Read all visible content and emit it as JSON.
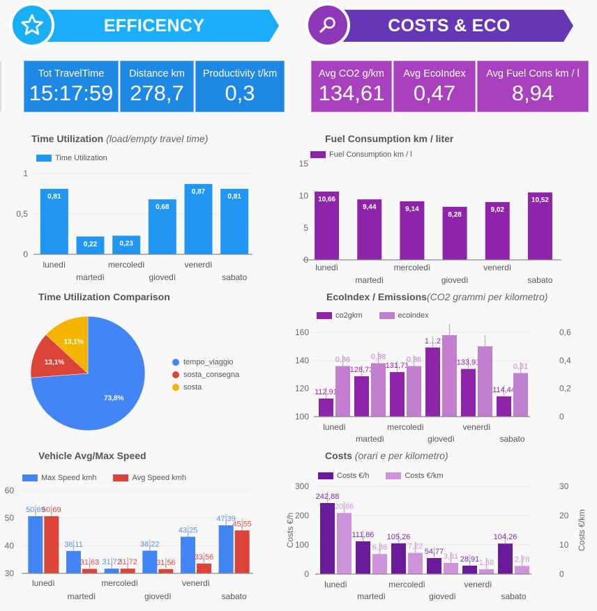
{
  "sections": {
    "efficiency": {
      "title": "EFFICENCY",
      "icon": "star-icon",
      "color": "#1aaefb"
    },
    "costs_eco": {
      "title": "COSTS & ECO",
      "icon": "magnifier-icon",
      "color": "#6637b5"
    }
  },
  "kpis_efficiency": [
    {
      "label": "Tot TravelTime",
      "value": "15:17:59"
    },
    {
      "label": "Distance km",
      "value": "278,7"
    },
    {
      "label": "Productivity t/km",
      "value": "0,3"
    }
  ],
  "kpis_eco": [
    {
      "label": "Avg CO2 g/km",
      "value": "134,61"
    },
    {
      "label": "Avg EcoIndex",
      "value": "0,47"
    },
    {
      "label": "Avg Fuel Cons km / l",
      "value": "8,94"
    }
  ],
  "titles": {
    "time_util": "Time Utilization ",
    "time_util_sub": "(load/empty travel time)",
    "fuel": "Fuel Consumption km / liter",
    "pie": "Time Utilization Comparison",
    "eco": "EcoIndex / Emissions",
    "eco_sub": "(CO2 grammi per kilometro)",
    "speed": "Vehicle Avg/Max Speed",
    "costs": "Costs ",
    "costs_sub": "(orari e per kilometro)"
  },
  "chart_data": [
    {
      "id": "time_util",
      "type": "bar",
      "title": "Time Utilization (load/empty travel time)",
      "categories": [
        "lunedì",
        "martedì",
        "mercoledì",
        "giovedì",
        "venerdì",
        "sabato"
      ],
      "series": [
        {
          "name": "Time Utilization",
          "values": [
            0.81,
            0.22,
            0.23,
            0.68,
            0.87,
            0.81
          ],
          "labels": [
            "0,81",
            "0,22",
            "0,23",
            "0,68",
            "0,87",
            "0,81"
          ],
          "color": "#2196f3"
        }
      ],
      "yticks": [
        "0",
        "0,5",
        "1"
      ],
      "ylim": [
        0,
        1
      ],
      "grid": true,
      "legend": "top-left"
    },
    {
      "id": "fuel",
      "type": "bar",
      "title": "Fuel Consumption km / liter",
      "categories": [
        "lunedì",
        "martedì",
        "mercoledì",
        "giovedì",
        "venerdì",
        "sabato"
      ],
      "series": [
        {
          "name": "Fuel Consumption km / l",
          "values": [
            10.66,
            9.44,
            9.14,
            8.28,
            9.02,
            10.52
          ],
          "labels": [
            "10,66",
            "9,44",
            "9,14",
            "8,28",
            "9,02",
            "10,52"
          ],
          "color": "#8e24aa"
        }
      ],
      "yticks": [
        "0",
        "5",
        "10",
        "15"
      ],
      "ylim": [
        0,
        15
      ],
      "grid": false,
      "legend": "top-left"
    },
    {
      "id": "pie",
      "type": "pie",
      "title": "Time Utilization Comparison",
      "slices": [
        {
          "name": "tempo_viaggio",
          "value": 73.8,
          "label": "73,8%",
          "color": "#4285f4"
        },
        {
          "name": "sosta_consegna",
          "value": 13.1,
          "label": "13,1%",
          "color": "#db4437"
        },
        {
          "name": "sosta",
          "value": 13.1,
          "label": "13,1%",
          "color": "#f4b400"
        }
      ],
      "legend": "right"
    },
    {
      "id": "eco",
      "type": "bar",
      "title": "EcoIndex / Emissions (CO2 grammi per kilometro)",
      "categories": [
        "lunedì",
        "martedì",
        "mercoledì",
        "giovedì",
        "venerdì",
        "sabato"
      ],
      "series": [
        {
          "name": "co2gkm",
          "axis": "left",
          "values": [
            112.91,
            128.73,
            131.71,
            149.2,
            133.91,
            114.44
          ],
          "labels": [
            "112,91",
            "128,73",
            "131,71",
            "1…2",
            "133,91",
            "114,44"
          ],
          "color": "#8e24aa"
        },
        {
          "name": "ecoindex",
          "axis": "right",
          "values": [
            0.36,
            0.38,
            0.36,
            0.58,
            0.5,
            0.31
          ],
          "labels": [
            "0,36",
            "0,38",
            "0,36",
            "",
            "",
            "0,31"
          ],
          "color": "#c27fd0"
        }
      ],
      "yticks_left": [
        "100",
        "120",
        "140",
        "160"
      ],
      "ylim_left": [
        100,
        160
      ],
      "yticks_right": [
        "0",
        "0,2",
        "0,4",
        "0,6"
      ],
      "ylim_right": [
        0,
        0.6
      ],
      "grid": true,
      "legend": "top-left"
    },
    {
      "id": "speed",
      "type": "bar",
      "title": "Vehicle Avg/Max Speed",
      "categories": [
        "lunedì",
        "martedì",
        "mercoledì",
        "giovedì",
        "venerdì",
        "sabato"
      ],
      "series": [
        {
          "name": "Max Speed kmh",
          "values": [
            50.69,
            38.11,
            31.72,
            38.22,
            43.25,
            47.39
          ],
          "labels": [
            "50,69",
            "38,11",
            "31,72",
            "38,22",
            "43,25",
            "47,39"
          ],
          "color": "#4285f4"
        },
        {
          "name": "Avg Speed kmh",
          "values": [
            50.69,
            31.63,
            31.72,
            31.56,
            33.56,
            45.55
          ],
          "labels": [
            "50,69",
            "31,63",
            "31,72",
            "31,56",
            "33,56",
            "45,55"
          ],
          "color": "#db4437"
        }
      ],
      "yticks": [
        "30",
        "40",
        "50",
        "60"
      ],
      "ylim": [
        30,
        60
      ],
      "grid": true,
      "legend": "top-left"
    },
    {
      "id": "costs",
      "type": "bar",
      "title": "Costs (orari e per kilometro)",
      "categories": [
        "lunedì",
        "martedì",
        "mercoledì",
        "giovedì",
        "venerdì",
        "sabato"
      ],
      "series": [
        {
          "name": "Costs €/h",
          "axis": "left",
          "values": [
            242.88,
            111.86,
            105.26,
            54.77,
            28.91,
            104.26
          ],
          "labels": [
            "242,88",
            "111,86",
            "105,26",
            "54,77",
            "28,91",
            "104,26"
          ],
          "color": "#6a1b9a"
        },
        {
          "name": "Costs €/km",
          "axis": "right",
          "values": [
            20.86,
            6.86,
            7.22,
            3.81,
            1.68,
            2.78
          ],
          "labels": [
            "20,86",
            "6,86",
            "7,22",
            "3,81",
            "1,68",
            "2,78"
          ],
          "color": "#ce93d8"
        }
      ],
      "ylabel_left": "Costs €/h",
      "ylabel_right": "Costs €/km",
      "yticks_left": [
        "0",
        "100",
        "200",
        "300"
      ],
      "ylim_left": [
        0,
        300
      ],
      "yticks_right": [
        "0",
        "10",
        "20",
        "30"
      ],
      "ylim_right": [
        0,
        30
      ],
      "grid": true,
      "legend": "top-left"
    }
  ]
}
